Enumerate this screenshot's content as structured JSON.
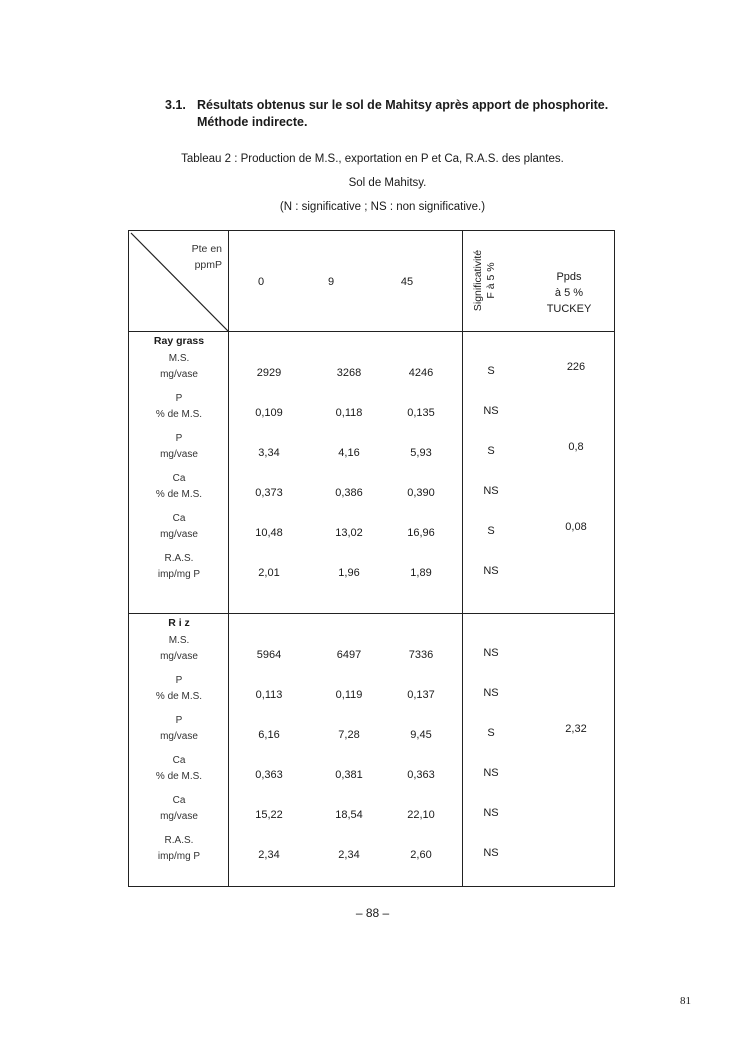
{
  "section_heading": {
    "number": "3.1.",
    "line1": "Résultats obtenus sur le sol de Mahitsy après apport de phosphorite.",
    "line2": "Méthode indirecte."
  },
  "caption": {
    "line1": "Tableau 2 : Production de M.S., exportation en P et Ca, R.A.S. des plantes.",
    "line2": "Sol de Mahitsy.",
    "line3": "(N : significative ; NS : non significative.)"
  },
  "table": {
    "corner_label": [
      "Pte en",
      "ppmP"
    ],
    "columns": [
      "0",
      "9",
      "45"
    ],
    "signif_header": [
      "Significativité",
      "F à 5 %"
    ],
    "ppds_header": [
      "Ppds",
      "à 5 %",
      "TUCKEY"
    ],
    "groups": [
      {
        "name": "Ray grass",
        "rows": [
          {
            "label": [
              "M.S.",
              "mg/vase"
            ],
            "values": [
              "2929",
              "3268",
              "4246"
            ],
            "signif": "S",
            "ppds": "226"
          },
          {
            "label": [
              "P",
              "% de M.S."
            ],
            "values": [
              "0,109",
              "0,118",
              "0,135"
            ],
            "signif": "NS",
            "ppds": ""
          },
          {
            "label": [
              "P",
              "mg/vase"
            ],
            "values": [
              "3,34",
              "4,16",
              "5,93"
            ],
            "signif": "S",
            "ppds": "0,8"
          },
          {
            "label": [
              "Ca",
              "% de M.S."
            ],
            "values": [
              "0,373",
              "0,386",
              "0,390"
            ],
            "signif": "NS",
            "ppds": ""
          },
          {
            "label": [
              "Ca",
              "mg/vase"
            ],
            "values": [
              "10,48",
              "13,02",
              "16,96"
            ],
            "signif": "S",
            "ppds": "0,08"
          },
          {
            "label": [
              "R.A.S.",
              "imp/mg P"
            ],
            "values": [
              "2,01",
              "1,96",
              "1,89"
            ],
            "signif": "NS",
            "ppds": ""
          }
        ]
      },
      {
        "name": "R i z",
        "rows": [
          {
            "label": [
              "M.S.",
              "mg/vase"
            ],
            "values": [
              "5964",
              "6497",
              "7336"
            ],
            "signif": "NS",
            "ppds": ""
          },
          {
            "label": [
              "P",
              "% de M.S."
            ],
            "values": [
              "0,113",
              "0,119",
              "0,137"
            ],
            "signif": "NS",
            "ppds": ""
          },
          {
            "label": [
              "P",
              "mg/vase"
            ],
            "values": [
              "6,16",
              "7,28",
              "9,45"
            ],
            "signif": "S",
            "ppds": "2,32"
          },
          {
            "label": [
              "Ca",
              "% de M.S."
            ],
            "values": [
              "0,363",
              "0,381",
              "0,363"
            ],
            "signif": "NS",
            "ppds": ""
          },
          {
            "label": [
              "Ca",
              "mg/vase"
            ],
            "values": [
              "15,22",
              "18,54",
              "22,10"
            ],
            "signif": "NS",
            "ppds": ""
          },
          {
            "label": [
              "R.A.S.",
              "imp/mg P"
            ],
            "values": [
              "2,34",
              "2,34",
              "2,60"
            ],
            "signif": "NS",
            "ppds": ""
          }
        ]
      }
    ]
  },
  "page_number": "– 88 –",
  "pdf_page_number": "81"
}
